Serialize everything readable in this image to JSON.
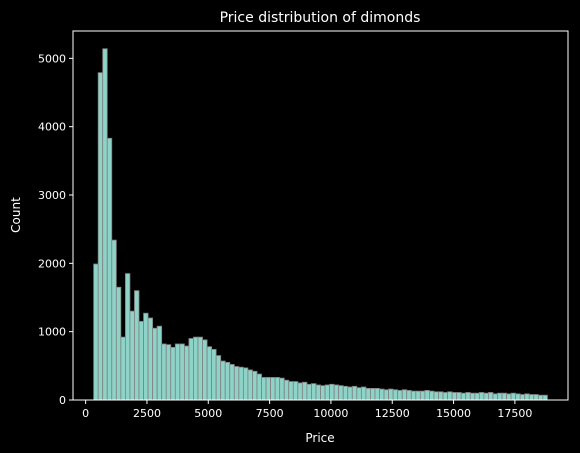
{
  "chart_data": {
    "type": "bar",
    "title": "Price distribution of dimonds",
    "xlabel": "Price",
    "ylabel": "Count",
    "xlim": [
      -515,
      19665
    ],
    "ylim": [
      0,
      5400
    ],
    "xticks": [
      0,
      2500,
      5000,
      7500,
      10000,
      12500,
      15000,
      17500
    ],
    "xtick_labels": [
      "0",
      "2500",
      "5000",
      "7500",
      "10000",
      "12500",
      "15000",
      "17500"
    ],
    "yticks": [
      0,
      1000,
      2000,
      3000,
      4000,
      5000
    ],
    "ytick_labels": [
      "0",
      "1000",
      "2000",
      "3000",
      "4000",
      "5000"
    ],
    "grid": false,
    "bin_start": 326,
    "bin_width": 185,
    "values": [
      1990,
      4790,
      5140,
      3830,
      2340,
      1650,
      920,
      1850,
      1300,
      1600,
      1150,
      1270,
      1200,
      1050,
      1080,
      820,
      810,
      770,
      820,
      820,
      790,
      900,
      920,
      920,
      880,
      780,
      740,
      650,
      570,
      550,
      520,
      490,
      480,
      470,
      440,
      420,
      380,
      330,
      330,
      330,
      330,
      320,
      290,
      270,
      270,
      250,
      260,
      230,
      240,
      220,
      210,
      220,
      230,
      220,
      210,
      200,
      190,
      200,
      180,
      190,
      170,
      170,
      170,
      160,
      150,
      160,
      150,
      140,
      150,
      140,
      130,
      130,
      130,
      140,
      130,
      120,
      120,
      110,
      120,
      110,
      110,
      100,
      110,
      100,
      100,
      110,
      100,
      110,
      90,
      100,
      100,
      90,
      100,
      90,
      80,
      90,
      80,
      80,
      70,
      70
    ],
    "bar_color": "#8dd3c7",
    "edge_color": "#808080"
  }
}
